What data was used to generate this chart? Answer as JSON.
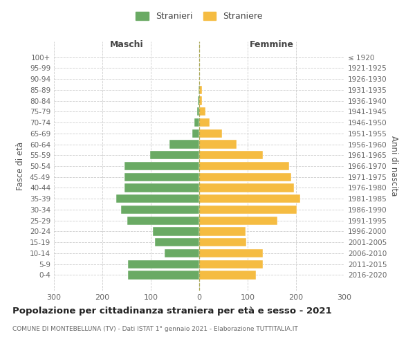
{
  "age_groups": [
    "100+",
    "95-99",
    "90-94",
    "85-89",
    "80-84",
    "75-79",
    "70-74",
    "65-69",
    "60-64",
    "55-59",
    "50-54",
    "45-49",
    "40-44",
    "35-39",
    "30-34",
    "25-29",
    "20-24",
    "15-19",
    "10-14",
    "5-9",
    "0-4"
  ],
  "birth_years": [
    "≤ 1920",
    "1921-1925",
    "1926-1930",
    "1931-1935",
    "1936-1940",
    "1941-1945",
    "1946-1950",
    "1951-1955",
    "1956-1960",
    "1961-1965",
    "1966-1970",
    "1971-1975",
    "1976-1980",
    "1981-1985",
    "1986-1990",
    "1991-1995",
    "1996-2000",
    "2001-2005",
    "2006-2010",
    "2011-2015",
    "2016-2020"
  ],
  "males": [
    0,
    0,
    0,
    2,
    3,
    5,
    10,
    14,
    62,
    102,
    155,
    155,
    155,
    172,
    162,
    148,
    96,
    92,
    72,
    147,
    147
  ],
  "females": [
    0,
    0,
    0,
    5,
    6,
    13,
    22,
    47,
    77,
    132,
    185,
    190,
    196,
    208,
    201,
    162,
    96,
    97,
    132,
    132,
    117
  ],
  "male_color": "#6aaa64",
  "female_color": "#f5bc42",
  "background_color": "#ffffff",
  "grid_color": "#cccccc",
  "title": "Popolazione per cittadinanza straniera per età e sesso - 2021",
  "subtitle": "COMUNE DI MONTEBELLUNA (TV) - Dati ISTAT 1° gennaio 2021 - Elaborazione TUTTITALIA.IT",
  "header_left": "Maschi",
  "header_right": "Femmine",
  "ylabel_left": "Fasce di età",
  "ylabel_right": "Anni di nascita",
  "legend_male": "Stranieri",
  "legend_female": "Straniere",
  "xlim": 300
}
